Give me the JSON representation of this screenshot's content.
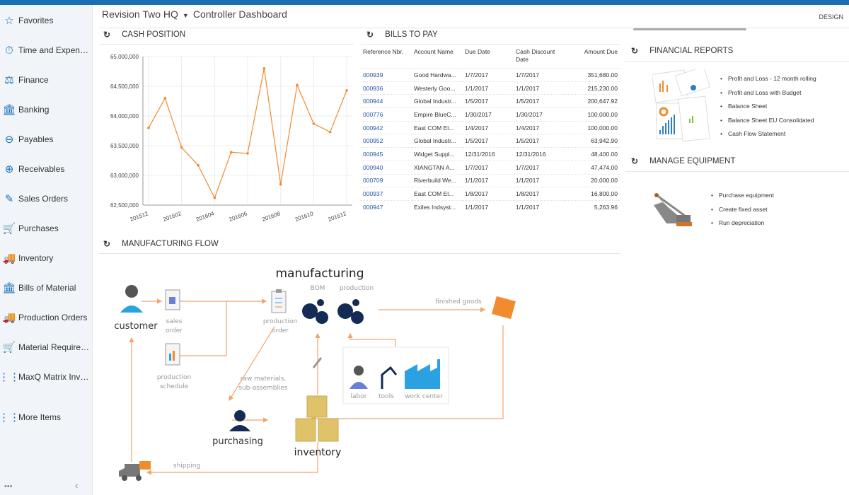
{
  "header": {
    "company": "Revision Two HQ",
    "dashboard": "Controller Dashboard",
    "design_label": "DESIGN"
  },
  "colors": {
    "accent": "#1a6fb5",
    "chart_line": "#f28a2e",
    "link": "#2455a4",
    "flow_arrow": "#f4a46a"
  },
  "sidebar": {
    "items": [
      {
        "label": "Favorites",
        "icon": "star-icon"
      },
      {
        "label": "Time and Expenses",
        "icon": "stopwatch-icon"
      },
      {
        "label": "Finance",
        "icon": "scales-icon"
      },
      {
        "label": "Banking",
        "icon": "bank-icon"
      },
      {
        "label": "Payables",
        "icon": "minus-circle-icon"
      },
      {
        "label": "Receivables",
        "icon": "plus-circle-icon"
      },
      {
        "label": "Sales Orders",
        "icon": "edit-icon"
      },
      {
        "label": "Purchases",
        "icon": "cart-icon"
      },
      {
        "label": "Inventory",
        "icon": "truck-icon"
      },
      {
        "label": "Bills of Material",
        "icon": "bank-icon"
      },
      {
        "label": "Production Orders",
        "icon": "truck-icon"
      },
      {
        "label": "Material Requirem...",
        "icon": "cart-plus-icon"
      },
      {
        "label": "MaxQ Matrix Invent...",
        "icon": "grid-icon"
      },
      {
        "label": "More Items",
        "icon": "grid-icon"
      }
    ],
    "footer": "•••",
    "collapse": "‹"
  },
  "cash_position": {
    "title": "CASH POSITION"
  },
  "chart_data": {
    "type": "line",
    "title": "",
    "x": [
      "201512",
      "201601",
      "201602",
      "201603",
      "201604",
      "201605",
      "201606",
      "201607",
      "201608",
      "201609",
      "201610",
      "201611",
      "201612"
    ],
    "xtick_labels": [
      "201512",
      "201602",
      "201604",
      "201606",
      "201608",
      "201610",
      "201612"
    ],
    "values": [
      63800000,
      64300000,
      63470000,
      63170000,
      62620000,
      63390000,
      63370000,
      64800000,
      62850000,
      64520000,
      63870000,
      63730000,
      64430000
    ],
    "ylim": [
      62500000,
      65000000
    ],
    "ytick_labels": [
      "65,000,000",
      "64,500,000",
      "64,000,000",
      "63,500,000",
      "63,000,000",
      "62,500,000"
    ],
    "grid": true,
    "color": "#f28a2e"
  },
  "bills": {
    "title": "BILLS TO PAY",
    "columns": [
      "Reference Nbr.",
      "Account Name",
      "Due Date",
      "Cash Discount Date",
      "Amount Due"
    ],
    "rows": [
      [
        "000939",
        "Good Hardwa...",
        "1/7/2017",
        "1/7/2017",
        "351,680.00"
      ],
      [
        "000936",
        "Westerly Goo...",
        "1/1/2017",
        "1/1/2017",
        "215,230.00"
      ],
      [
        "000944",
        "Global Industr...",
        "1/5/2017",
        "1/5/2017",
        "200,647.92"
      ],
      [
        "000776",
        "Empire BlueC...",
        "1/30/2017",
        "1/30/2017",
        "100,000.00"
      ],
      [
        "000942",
        "East COM El...",
        "1/4/2017",
        "1/4/2017",
        "100,000.00"
      ],
      [
        "000952",
        "Global Industr...",
        "1/5/2017",
        "1/5/2017",
        "63,942.90"
      ],
      [
        "000945",
        "Widget Suppl...",
        "12/31/2016",
        "12/31/2016",
        "48,400.00"
      ],
      [
        "000940",
        "XIANGTAN A...",
        "1/7/2017",
        "1/7/2017",
        "47,474.00"
      ],
      [
        "000709",
        "Riverbuild We...",
        "1/1/2017",
        "1/1/2017",
        "20,000.00"
      ],
      [
        "000937",
        "East COM El...",
        "1/8/2017",
        "1/8/2017",
        "16,800.00"
      ],
      [
        "000947",
        "Exiles Indsyst...",
        "1/1/2017",
        "1/1/2017",
        "5,263.96"
      ]
    ]
  },
  "financial_reports": {
    "title": "FINANCIAL REPORTS",
    "items": [
      "Profit and Loss - 12 month rolling",
      "Profit and Loss with Budget",
      "Balance Sheet",
      "Balance Sheet EU Consolidated",
      "Cash Flow Statement"
    ]
  },
  "manage_equipment": {
    "title": "MANAGE EQUIPMENT",
    "items": [
      "Purchase equipment",
      "Create fixed asset",
      "Run depreciation"
    ]
  },
  "manufacturing_flow": {
    "title": "MANUFACTURING FLOW",
    "labels": {
      "manufacturing": "manufacturing",
      "bom": "BOM",
      "production": "production",
      "customer": "customer",
      "sales": "sales",
      "order": "order",
      "production_order_1": "production",
      "production_order_2": "order",
      "production_schedule_1": "production",
      "production_schedule_2": "schedule",
      "finished_goods": "finished goods",
      "raw_1": "raw materials,",
      "raw_2": "sub-assemblies",
      "labor": "labor",
      "tools": "tools",
      "work_center": "work center",
      "purchasing": "purchasing",
      "inventory": "inventory",
      "shipping": "shipping"
    }
  }
}
